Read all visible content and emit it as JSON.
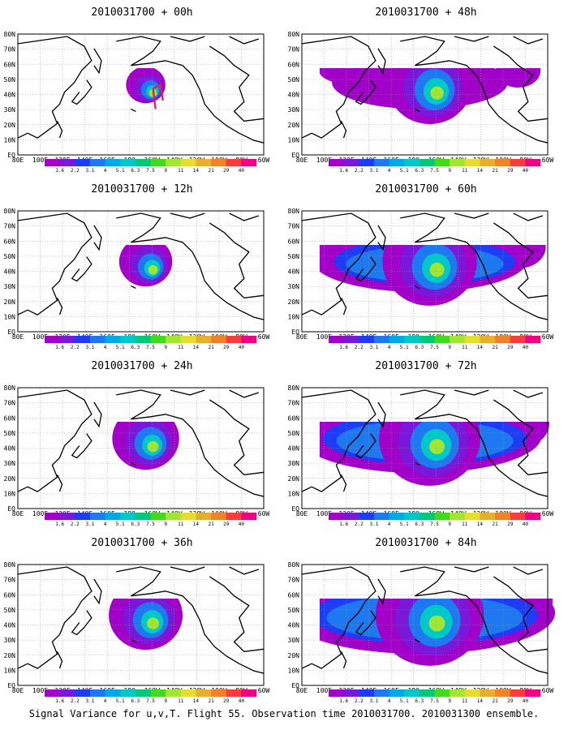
{
  "colorbar": {
    "labels": [
      "1.6",
      "2.2",
      "3.1",
      "4",
      "5.1",
      "6.3",
      "7.5",
      "9",
      "11",
      "14",
      "21",
      "29",
      "40"
    ],
    "colors": [
      "#a000c8",
      "#7a18d9",
      "#1f3cf5",
      "#1e78f0",
      "#00a8e6",
      "#00c8c8",
      "#00c878",
      "#3fdb1c",
      "#a0e632",
      "#e6dc32",
      "#e6af2d",
      "#f08228",
      "#fa3c3c",
      "#f00082"
    ]
  },
  "axes": {
    "lon_labels": [
      "80E",
      "100E",
      "120E",
      "140E",
      "160E",
      "180",
      "160W",
      "140W",
      "120W",
      "100W",
      "80W",
      "60W"
    ],
    "lat_labels": [
      "80N",
      "70N",
      "60N",
      "50N",
      "40N",
      "30N",
      "20N",
      "10N",
      "EQ"
    ],
    "lon_range": [
      "80E",
      "60W"
    ],
    "lat_range": [
      "EQ",
      "80N"
    ],
    "grid": "dotted"
  },
  "panels": [
    {
      "title": "2010031700 + 00h",
      "col": 0,
      "row": 0,
      "spread": 0.0
    },
    {
      "title": "2010031700 + 12h",
      "col": 0,
      "row": 1,
      "spread": 0.2
    },
    {
      "title": "2010031700 + 24h",
      "col": 0,
      "row": 2,
      "spread": 0.4
    },
    {
      "title": "2010031700 + 36h",
      "col": 0,
      "row": 3,
      "spread": 0.5
    },
    {
      "title": "2010031700 + 48h",
      "col": 1,
      "row": 0,
      "spread": 0.65
    },
    {
      "title": "2010031700 + 60h",
      "col": 1,
      "row": 1,
      "spread": 0.8
    },
    {
      "title": "2010031700 + 72h",
      "col": 1,
      "row": 2,
      "spread": 0.9
    },
    {
      "title": "2010031700 + 84h",
      "col": 1,
      "row": 3,
      "spread": 1.0
    }
  ],
  "footer": "Signal Variance for u,v,T. Flight 55. Observation time 2010031700. 2010031300 ensemble."
}
